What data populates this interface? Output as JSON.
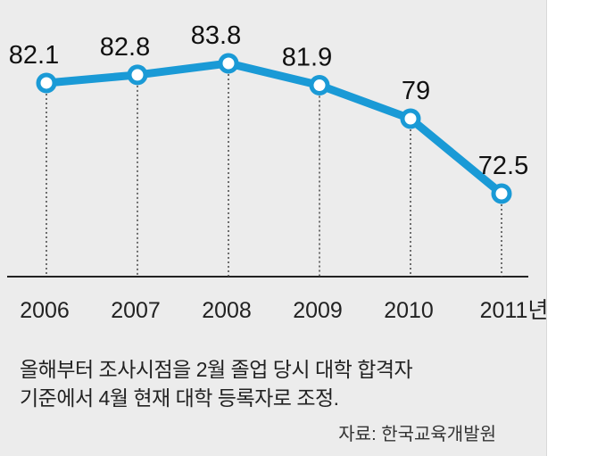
{
  "chart_data": {
    "type": "line",
    "categories": [
      "2006",
      "2007",
      "2008",
      "2009",
      "2010",
      "2011년"
    ],
    "values": [
      82.1,
      82.8,
      83.8,
      81.9,
      79,
      72.5
    ],
    "data_labels": [
      "82.1",
      "82.8",
      "83.8",
      "81.9",
      "79",
      "72.5"
    ],
    "title": "",
    "xlabel": "",
    "ylabel": "",
    "grid": false,
    "line_color": "#1a9ad6",
    "marker_fill": "#ffffff"
  },
  "notes": {
    "line1": "올해부터 조사시점을 2월 졸업 당시 대학 합격자",
    "line2": "기준에서 4월 현재 대학 등록자로 조정.",
    "source": "자료: 한국교육개발원"
  }
}
